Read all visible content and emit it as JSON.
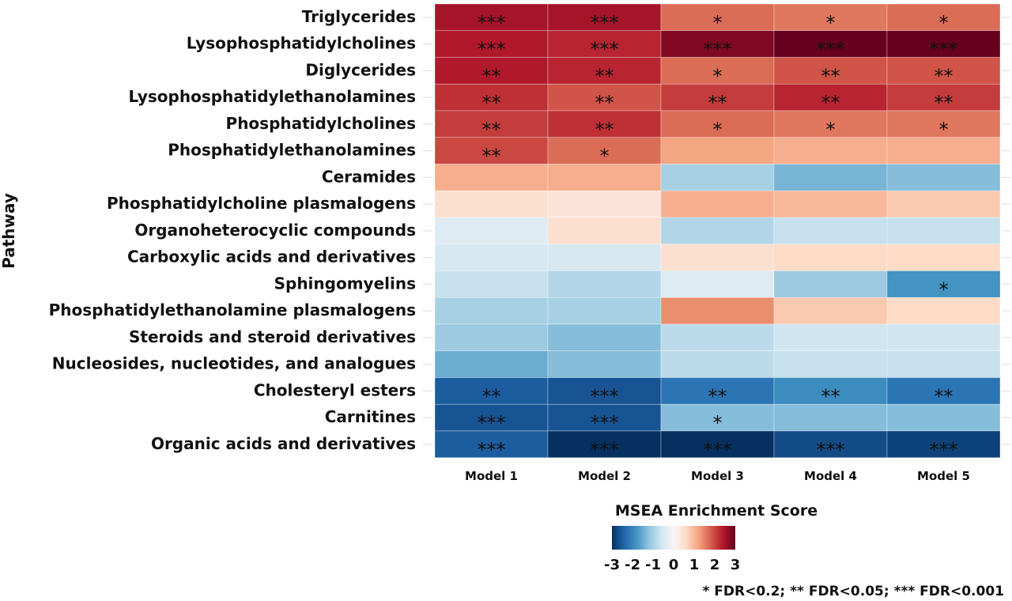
{
  "chart_data": {
    "type": "heatmap",
    "title": "",
    "xlabel": "",
    "ylabel": "Pathway",
    "columns": [
      "Model 1",
      "Model 2",
      "Model 3",
      "Model 4",
      "Model 5"
    ],
    "rows": [
      "Triglycerides",
      "Lysophosphatidylcholines",
      "Diglycerides",
      "Lysophosphatidylethanolamines",
      "Phosphatidylcholines",
      "Phosphatidylethanolamines",
      "Ceramides",
      "Phosphatidylcholine plasmalogens",
      "Organoheterocyclic compounds",
      "Carboxylic acids and derivatives",
      "Sphingomyelins",
      "Phosphatidylethanolamine plasmalogens",
      "Steroids and steroid derivatives",
      "Nucleosides, nucleotides, and analogues",
      "Cholesteryl esters",
      "Carnitines",
      "Organic acids and derivatives"
    ],
    "values": [
      [
        2.5,
        2.5,
        1.7,
        1.6,
        1.7
      ],
      [
        2.4,
        2.3,
        2.8,
        3.0,
        3.0
      ],
      [
        2.4,
        2.3,
        1.7,
        1.9,
        1.9
      ],
      [
        2.2,
        1.9,
        2.1,
        2.3,
        2.1
      ],
      [
        2.1,
        2.2,
        1.7,
        1.6,
        1.6
      ],
      [
        2.0,
        1.7,
        1.2,
        1.1,
        1.1
      ],
      [
        1.1,
        1.1,
        -1.0,
        -1.4,
        -1.3
      ],
      [
        0.5,
        0.4,
        1.1,
        1.0,
        0.8
      ],
      [
        -0.4,
        0.5,
        -0.9,
        -0.7,
        -0.7
      ],
      [
        -0.5,
        -0.5,
        0.5,
        0.6,
        0.6
      ],
      [
        -0.7,
        -0.9,
        -0.4,
        -1.1,
        -1.8
      ],
      [
        -1.0,
        -1.0,
        1.4,
        0.8,
        0.6
      ],
      [
        -1.1,
        -1.3,
        -0.8,
        -0.6,
        -0.6
      ],
      [
        -1.5,
        -1.3,
        -0.8,
        -0.7,
        -0.7
      ],
      [
        -2.5,
        -2.6,
        -2.2,
        -1.9,
        -2.2
      ],
      [
        -2.6,
        -2.6,
        -1.3,
        -1.3,
        -1.3
      ],
      [
        -2.5,
        -3.0,
        -3.0,
        -2.7,
        -2.8
      ]
    ],
    "significance": [
      [
        "***",
        "***",
        "*",
        "*",
        "*"
      ],
      [
        "***",
        "***",
        "***",
        "***",
        "***"
      ],
      [
        "**",
        "**",
        "*",
        "**",
        "**"
      ],
      [
        "**",
        "**",
        "**",
        "**",
        "**"
      ],
      [
        "**",
        "**",
        "*",
        "*",
        "*"
      ],
      [
        "**",
        "*",
        "",
        "",
        ""
      ],
      [
        "",
        "",
        "",
        "",
        ""
      ],
      [
        "",
        "",
        "",
        "",
        ""
      ],
      [
        "",
        "",
        "",
        "",
        ""
      ],
      [
        "",
        "",
        "",
        "",
        ""
      ],
      [
        "",
        "",
        "",
        "",
        "*"
      ],
      [
        "",
        "",
        "",
        "",
        ""
      ],
      [
        "",
        "",
        "",
        "",
        ""
      ],
      [
        "",
        "",
        "",
        "",
        ""
      ],
      [
        "**",
        "***",
        "**",
        "**",
        "**"
      ],
      [
        "***",
        "***",
        "*",
        "",
        ""
      ],
      [
        "***",
        "***",
        "***",
        "***",
        "***"
      ]
    ],
    "colorbar": {
      "title": "MSEA Enrichment Score",
      "range": [
        -3,
        3
      ],
      "ticks": [
        "-3",
        "-2",
        "-1",
        "0",
        "1",
        "2",
        "3"
      ],
      "colors": [
        "#053061",
        "#2166ac",
        "#4393c3",
        "#92c5de",
        "#d1e5f0",
        "#f7f7f7",
        "#fddbc7",
        "#f4a582",
        "#d6604d",
        "#b2182b",
        "#67001f"
      ]
    },
    "footnote": "* FDR<0.2; ** FDR<0.05; *** FDR<0.001",
    "grid": true,
    "legend_position": "bottom"
  }
}
